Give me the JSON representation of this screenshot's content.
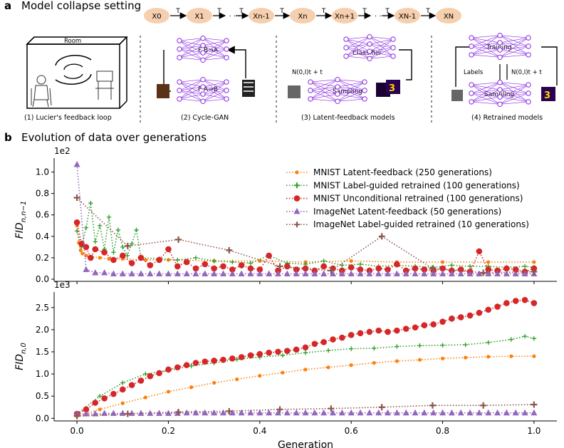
{
  "panel_a": {
    "letter": "a",
    "title": "Model collapse setting",
    "chain": {
      "nodes": [
        "X0",
        "X1",
        "Xn-1",
        "Xn",
        "Xn+1",
        "XN-1",
        "XN"
      ],
      "edge_label": "T",
      "ellipsis": "· · ·"
    },
    "subpanels": [
      {
        "caption": "(1) Lucier's feedback loop",
        "room_label": "Room"
      },
      {
        "caption": "(2) Cycle-GAN",
        "top_label": "F B→A",
        "bottom_label": "F A→B"
      },
      {
        "caption": "(3) Latent-feedback models",
        "top_label": "Classifier",
        "bottom_label": "Sampling",
        "noise_label": "N(0,I)t + t"
      },
      {
        "caption": "(4) Retrained models",
        "top_label": "Training",
        "bottom_label": "Sampling",
        "labels_label": "Labels",
        "noise_label": "N(0,I)t + t"
      }
    ]
  },
  "panel_b": {
    "letter": "b",
    "title": "Evolution of data over generations"
  },
  "legend": [
    "MNIST Latent-feedback (250 generations)",
    "MNIST Label-guided retrained (100 generations)",
    "MNIST Unconditional retrained (100 generations)",
    "ImageNet Latent-feedback (50 generations)",
    "ImageNet Label-guided retrained (10 generations)"
  ],
  "colors": {
    "mnist_latent": "#ff7f0e",
    "mnist_label": "#2ca02c",
    "mnist_uncond": "#d62728",
    "imagenet_latent": "#9467bd",
    "imagenet_label": "#8c564b",
    "node_fill": "#f5cfae",
    "network": "#8a2be2"
  },
  "chart_data": [
    {
      "type": "line",
      "xlabel": "",
      "ylabel": "FID n,n−1",
      "y_offset_label": "1e2",
      "xlim": [
        -0.05,
        1.05
      ],
      "ylim": [
        -0.02,
        1.13
      ],
      "yticks": [
        "0.0",
        "0.2",
        "0.4",
        "0.6",
        "0.8",
        "1.0"
      ],
      "ytick_values": [
        0,
        0.2,
        0.4,
        0.6,
        0.8,
        1.0
      ],
      "series": [
        {
          "name": "MNIST Latent-feedback (250 generations)",
          "key": "mnist_latent",
          "marker": "dot",
          "x": [
            0,
            0.004,
            0.008,
            0.012,
            0.02,
            0.03,
            0.05,
            0.07,
            0.1,
            0.15,
            0.2,
            0.3,
            0.4,
            0.5,
            0.6,
            0.7,
            0.8,
            0.9,
            1.0
          ],
          "y": [
            0.5,
            0.34,
            0.27,
            0.24,
            0.22,
            0.21,
            0.2,
            0.19,
            0.19,
            0.18,
            0.18,
            0.17,
            0.17,
            0.16,
            0.17,
            0.16,
            0.16,
            0.16,
            0.16
          ]
        },
        {
          "name": "MNIST Label-guided retrained (100 generations)",
          "key": "mnist_label",
          "marker": "plus",
          "x": [
            0,
            0.01,
            0.02,
            0.03,
            0.04,
            0.05,
            0.06,
            0.07,
            0.08,
            0.09,
            0.1,
            0.11,
            0.12,
            0.13,
            0.14,
            0.18,
            0.22,
            0.26,
            0.3,
            0.34,
            0.38,
            0.42,
            0.46,
            0.5,
            0.54,
            0.58,
            0.62,
            0.66,
            0.7,
            0.74,
            0.78,
            0.82,
            0.86,
            0.9,
            0.94,
            0.98,
            1.0
          ],
          "y": [
            0.45,
            0.3,
            0.48,
            0.71,
            0.35,
            0.5,
            0.28,
            0.58,
            0.25,
            0.46,
            0.3,
            0.22,
            0.33,
            0.46,
            0.2,
            0.19,
            0.18,
            0.2,
            0.17,
            0.16,
            0.15,
            0.22,
            0.15,
            0.14,
            0.17,
            0.13,
            0.14,
            0.12,
            0.13,
            0.12,
            0.11,
            0.13,
            0.12,
            0.12,
            0.11,
            0.12,
            0.11
          ]
        },
        {
          "name": "MNIST Unconditional retrained (100 generations)",
          "key": "mnist_uncond",
          "marker": "circle",
          "x": [
            0,
            0.01,
            0.02,
            0.03,
            0.04,
            0.06,
            0.08,
            0.1,
            0.12,
            0.14,
            0.16,
            0.18,
            0.2,
            0.22,
            0.24,
            0.26,
            0.28,
            0.3,
            0.32,
            0.34,
            0.36,
            0.38,
            0.4,
            0.42,
            0.44,
            0.46,
            0.48,
            0.5,
            0.52,
            0.54,
            0.56,
            0.58,
            0.6,
            0.62,
            0.64,
            0.66,
            0.68,
            0.7,
            0.72,
            0.74,
            0.76,
            0.78,
            0.8,
            0.82,
            0.84,
            0.86,
            0.88,
            0.9,
            0.92,
            0.94,
            0.96,
            0.98,
            1.0
          ],
          "y": [
            0.53,
            0.33,
            0.3,
            0.2,
            0.28,
            0.25,
            0.18,
            0.22,
            0.15,
            0.2,
            0.13,
            0.18,
            0.28,
            0.12,
            0.16,
            0.1,
            0.14,
            0.1,
            0.12,
            0.09,
            0.13,
            0.1,
            0.09,
            0.22,
            0.08,
            0.12,
            0.09,
            0.1,
            0.08,
            0.12,
            0.1,
            0.08,
            0.11,
            0.09,
            0.08,
            0.1,
            0.09,
            0.14,
            0.08,
            0.1,
            0.09,
            0.08,
            0.1,
            0.08,
            0.09,
            0.07,
            0.26,
            0.09,
            0.08,
            0.1,
            0.09,
            0.07,
            0.1
          ]
        },
        {
          "name": "ImageNet Latent-feedback (50 generations)",
          "key": "imagenet_latent",
          "marker": "triangle",
          "x": [
            0,
            0.02,
            0.04,
            0.06,
            0.08,
            0.1,
            0.12,
            0.14,
            0.16,
            0.18,
            0.2,
            0.22,
            0.24,
            0.26,
            0.28,
            0.3,
            0.32,
            0.34,
            0.36,
            0.38,
            0.4,
            0.42,
            0.44,
            0.46,
            0.48,
            0.5,
            0.52,
            0.54,
            0.56,
            0.58,
            0.6,
            0.62,
            0.64,
            0.66,
            0.68,
            0.7,
            0.72,
            0.74,
            0.76,
            0.78,
            0.8,
            0.82,
            0.84,
            0.86,
            0.88,
            0.9,
            0.92,
            0.94,
            0.96,
            0.98,
            1.0
          ],
          "y": [
            1.07,
            0.09,
            0.06,
            0.06,
            0.05,
            0.05,
            0.05,
            0.05,
            0.05,
            0.05,
            0.05,
            0.05,
            0.05,
            0.05,
            0.05,
            0.05,
            0.05,
            0.05,
            0.05,
            0.05,
            0.05,
            0.05,
            0.05,
            0.05,
            0.05,
            0.05,
            0.05,
            0.05,
            0.05,
            0.05,
            0.05,
            0.05,
            0.05,
            0.05,
            0.05,
            0.05,
            0.05,
            0.05,
            0.05,
            0.05,
            0.05,
            0.05,
            0.05,
            0.05,
            0.05,
            0.05,
            0.05,
            0.05,
            0.05,
            0.05,
            0.05
          ]
        },
        {
          "name": "ImageNet Label-guided retrained (10 generations)",
          "key": "imagenet_label",
          "marker": "plus",
          "x": [
            0,
            0.111,
            0.222,
            0.333,
            0.444,
            0.556,
            0.667,
            0.778,
            0.889,
            1.0
          ],
          "y": [
            0.76,
            0.31,
            0.37,
            0.27,
            0.12,
            0.08,
            0.4,
            0.1,
            0.06,
            0.07
          ]
        }
      ]
    },
    {
      "type": "line",
      "xlabel": "Generation",
      "ylabel": "FID n,0",
      "y_offset_label": "1e3",
      "xlim": [
        -0.05,
        1.05
      ],
      "ylim": [
        -0.06,
        2.85
      ],
      "xticks": [
        "0.0",
        "0.2",
        "0.4",
        "0.6",
        "0.8",
        "1.0"
      ],
      "xtick_values": [
        0,
        0.2,
        0.4,
        0.6,
        0.8,
        1.0
      ],
      "yticks": [
        "0.0",
        "0.5",
        "1.0",
        "1.5",
        "2.0",
        "2.5"
      ],
      "ytick_values": [
        0,
        0.5,
        1.0,
        1.5,
        2.0,
        2.5
      ],
      "series": [
        {
          "name": "MNIST Latent-feedback (250 generations)",
          "key": "mnist_latent",
          "marker": "dot",
          "x": [
            0,
            0.05,
            0.1,
            0.15,
            0.2,
            0.25,
            0.3,
            0.35,
            0.4,
            0.45,
            0.5,
            0.55,
            0.6,
            0.65,
            0.7,
            0.75,
            0.8,
            0.85,
            0.9,
            0.95,
            1.0
          ],
          "y": [
            0.05,
            0.2,
            0.34,
            0.47,
            0.6,
            0.7,
            0.8,
            0.88,
            0.96,
            1.03,
            1.1,
            1.15,
            1.2,
            1.25,
            1.29,
            1.32,
            1.35,
            1.37,
            1.39,
            1.4,
            1.4
          ]
        },
        {
          "name": "MNIST Label-guided retrained (100 generations)",
          "key": "mnist_label",
          "marker": "plus",
          "x": [
            0,
            0.05,
            0.1,
            0.15,
            0.2,
            0.25,
            0.3,
            0.35,
            0.4,
            0.45,
            0.5,
            0.55,
            0.6,
            0.65,
            0.7,
            0.75,
            0.8,
            0.85,
            0.9,
            0.95,
            0.98,
            1.0
          ],
          "y": [
            0.1,
            0.5,
            0.8,
            1.0,
            1.08,
            1.18,
            1.25,
            1.33,
            1.38,
            1.42,
            1.48,
            1.53,
            1.57,
            1.58,
            1.62,
            1.64,
            1.65,
            1.66,
            1.71,
            1.78,
            1.85,
            1.8
          ]
        },
        {
          "name": "MNIST Unconditional retrained (100 generations)",
          "key": "mnist_uncond",
          "marker": "circle",
          "x": [
            0,
            0.02,
            0.04,
            0.06,
            0.08,
            0.1,
            0.12,
            0.14,
            0.16,
            0.18,
            0.2,
            0.22,
            0.24,
            0.26,
            0.28,
            0.3,
            0.32,
            0.34,
            0.36,
            0.38,
            0.4,
            0.42,
            0.44,
            0.46,
            0.48,
            0.5,
            0.52,
            0.54,
            0.56,
            0.58,
            0.6,
            0.62,
            0.64,
            0.66,
            0.68,
            0.7,
            0.72,
            0.74,
            0.76,
            0.78,
            0.8,
            0.82,
            0.84,
            0.86,
            0.88,
            0.9,
            0.92,
            0.94,
            0.96,
            0.98,
            1.0
          ],
          "y": [
            0.1,
            0.2,
            0.35,
            0.45,
            0.55,
            0.65,
            0.75,
            0.85,
            0.95,
            1.02,
            1.1,
            1.15,
            1.2,
            1.25,
            1.28,
            1.3,
            1.32,
            1.35,
            1.38,
            1.42,
            1.45,
            1.48,
            1.5,
            1.52,
            1.55,
            1.6,
            1.68,
            1.72,
            1.78,
            1.82,
            1.88,
            1.92,
            1.95,
            1.98,
            1.95,
            1.98,
            2.02,
            2.05,
            2.1,
            2.12,
            2.18,
            2.25,
            2.28,
            2.32,
            2.38,
            2.45,
            2.52,
            2.6,
            2.65,
            2.67,
            2.6
          ]
        },
        {
          "name": "ImageNet Latent-feedback (50 generations)",
          "key": "imagenet_latent",
          "marker": "triangle",
          "x": [
            0,
            0.02,
            0.04,
            0.06,
            0.08,
            0.1,
            0.12,
            0.14,
            0.16,
            0.18,
            0.2,
            0.22,
            0.24,
            0.26,
            0.28,
            0.3,
            0.32,
            0.34,
            0.36,
            0.38,
            0.4,
            0.42,
            0.44,
            0.46,
            0.48,
            0.5,
            0.52,
            0.54,
            0.56,
            0.58,
            0.6,
            0.62,
            0.64,
            0.66,
            0.68,
            0.7,
            0.72,
            0.74,
            0.76,
            0.78,
            0.8,
            0.82,
            0.84,
            0.86,
            0.88,
            0.9,
            0.92,
            0.94,
            0.96,
            0.98,
            1.0
          ],
          "y": [
            0.1,
            0.1,
            0.1,
            0.11,
            0.11,
            0.11,
            0.11,
            0.11,
            0.11,
            0.11,
            0.11,
            0.11,
            0.12,
            0.12,
            0.12,
            0.12,
            0.12,
            0.12,
            0.12,
            0.12,
            0.12,
            0.12,
            0.12,
            0.12,
            0.12,
            0.12,
            0.12,
            0.12,
            0.12,
            0.12,
            0.12,
            0.12,
            0.12,
            0.12,
            0.12,
            0.12,
            0.12,
            0.12,
            0.12,
            0.12,
            0.12,
            0.12,
            0.12,
            0.12,
            0.12,
            0.12,
            0.12,
            0.12,
            0.12,
            0.12,
            0.12
          ]
        },
        {
          "name": "ImageNet Label-guided retrained (10 generations)",
          "key": "imagenet_label",
          "marker": "plus",
          "x": [
            0,
            0.111,
            0.222,
            0.333,
            0.444,
            0.556,
            0.667,
            0.778,
            0.889,
            1.0
          ],
          "y": [
            0.05,
            0.1,
            0.14,
            0.16,
            0.2,
            0.22,
            0.25,
            0.29,
            0.29,
            0.31
          ]
        }
      ]
    }
  ]
}
